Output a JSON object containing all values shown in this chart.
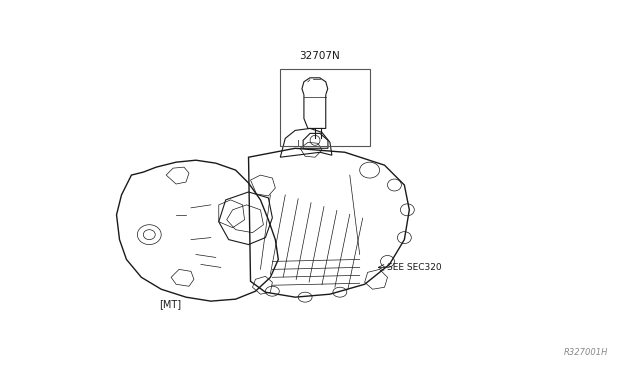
{
  "background_color": "#ffffff",
  "line_color": "#1a1a1a",
  "text_color": "#1a1a1a",
  "part_number": "32707N",
  "label_mt": "[MT]",
  "label_sec": "SEE SEC320",
  "label_ref": "R327001H",
  "fig_width": 6.4,
  "fig_height": 3.72,
  "dpi": 100,
  "body_bg": "#f8f8f0",
  "note_color": "#666666"
}
